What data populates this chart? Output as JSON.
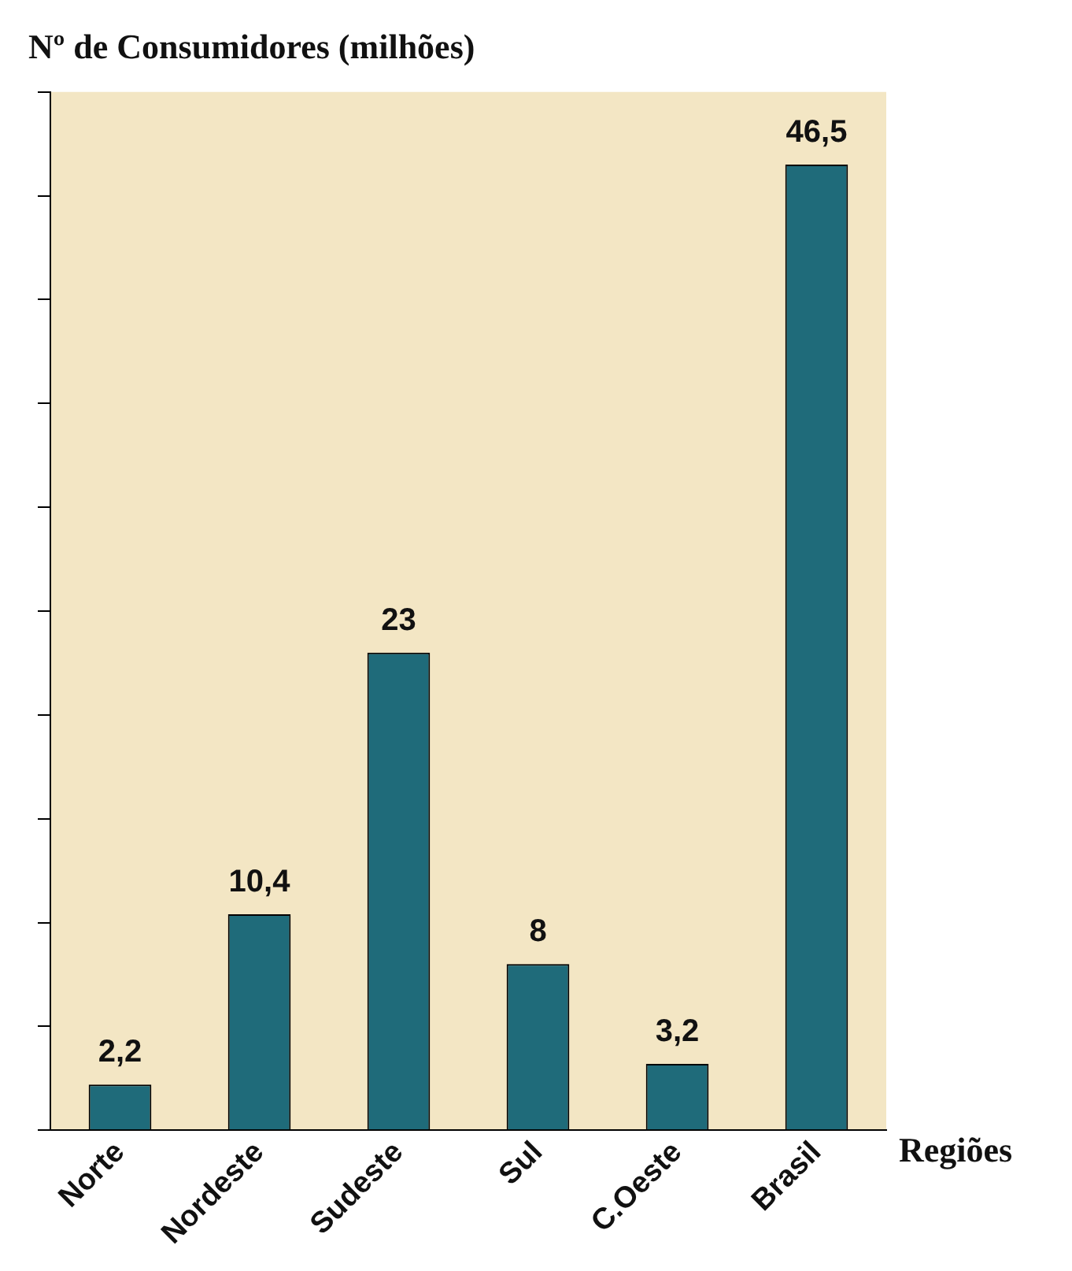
{
  "chart_data": {
    "type": "bar",
    "ylabel": "Nº de Consumidores (milhões)",
    "xlabel": "Regiões",
    "categories": [
      "Norte",
      "Nordeste",
      "Sudeste",
      "Sul",
      "C.Oeste",
      "Brasil"
    ],
    "values": [
      2.2,
      10.4,
      23,
      8,
      3.2,
      46.5
    ],
    "value_labels": [
      "2,2",
      "10,4",
      "23",
      "8",
      "3,2",
      "46,5"
    ],
    "color": "#1f6b7a",
    "ylim": [
      0,
      50
    ],
    "yticks": [
      {
        "value": 0,
        "label": null
      },
      {
        "value": 5,
        "label": null
      },
      {
        "value": 10,
        "label": null
      },
      {
        "value": 15,
        "label": null
      },
      {
        "value": 20,
        "label": null
      },
      {
        "value": 25,
        "label": null
      },
      {
        "value": 30,
        "label": null
      },
      {
        "value": 35,
        "label": null
      },
      {
        "value": 40,
        "label": null
      },
      {
        "value": 45,
        "label": null
      },
      {
        "value": 50,
        "label": null
      }
    ],
    "tick_labels": "x",
    "grid": false,
    "legend": false
  }
}
